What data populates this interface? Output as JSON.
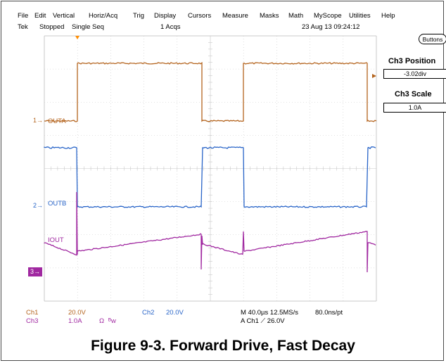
{
  "menu": [
    "File",
    "Edit",
    "Vertical",
    "Horiz/Acq",
    "Trig",
    "Display",
    "Cursors",
    "Measure",
    "Masks",
    "Math",
    "MyScope",
    "Utilities",
    "Help"
  ],
  "status": {
    "brand": "Tek",
    "state": "Stopped",
    "mode": "Single Seq",
    "acqs": "1 Acqs",
    "datetime": "23 Aug 13 09:24:12"
  },
  "right_panel": {
    "buttons_label": "Buttons",
    "position_title": "Ch3 Position",
    "position_value": "-3.02div",
    "scale_title": "Ch3 Scale",
    "scale_value": "1.0A"
  },
  "channels": {
    "ch1_marker": "1",
    "ch2_marker": "2",
    "ch3_marker": "3",
    "outa_label": "OUTA",
    "outb_label": "OUTB",
    "iout_label": "IOUT"
  },
  "readout": {
    "ch1_name": "Ch1",
    "ch1_scale": "20.0V",
    "ch3_name": "Ch3",
    "ch3_scale": "1.0A",
    "ch3_coupling": "Ω",
    "ch3_bw": "ᴮw",
    "ch2_name": "Ch2",
    "ch2_scale": "20.0V",
    "timebase": "M 40.0µs 12.5MS/s",
    "resolution": "80.0ns/pt",
    "trigger": "A  Ch1  ⟋  26.0V"
  },
  "colors": {
    "ch1": "#b4641e",
    "ch2": "#2864c8",
    "ch3": "#a028a0",
    "grid": "#c8c8c8",
    "trigger_marker": "#ff8c00"
  },
  "caption": "Figure 9-3. Forward Drive, Fast Decay"
}
